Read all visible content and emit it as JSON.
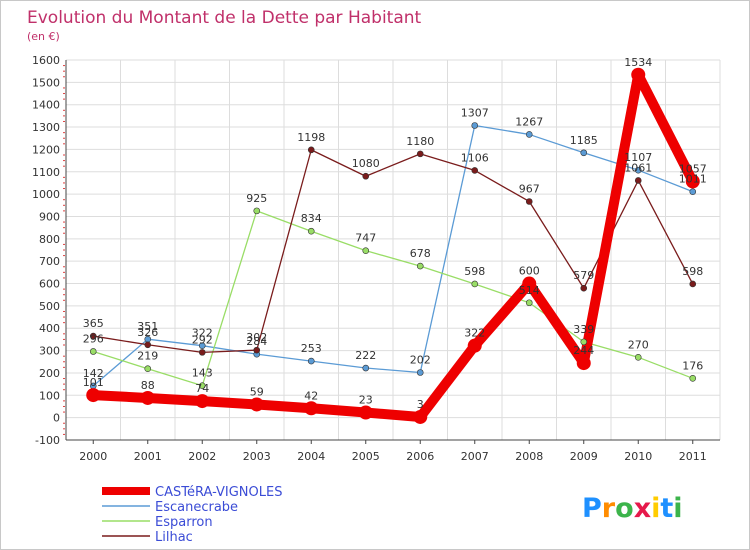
{
  "chart_data": {
    "type": "line",
    "title": "Evolution du Montant de la Dette par Habitant",
    "subtitle": "(en €)",
    "xlabel": "",
    "ylabel": "",
    "x": [
      "2000",
      "2001",
      "2002",
      "2003",
      "2004",
      "2005",
      "2006",
      "2007",
      "2008",
      "2009",
      "2010",
      "2011"
    ],
    "ylim": [
      -100,
      1600
    ],
    "yticks": [
      "-100",
      "0",
      "100",
      "200",
      "300",
      "400",
      "500",
      "600",
      "700",
      "800",
      "900",
      "1000",
      "1100",
      "1200",
      "1300",
      "1400",
      "1500",
      "1600"
    ],
    "grid": true,
    "legend_position": "bottom-left",
    "series": [
      {
        "name": "CASTéRA-VIGNOLES",
        "color": "#ee0000",
        "values": [
          101,
          88,
          74,
          59,
          42,
          23,
          3,
          322,
          600,
          244,
          1534,
          1057
        ],
        "labels": [
          "101",
          "88",
          "74",
          "59",
          "42",
          "23",
          "3",
          "322",
          "600",
          "244",
          "1534",
          "1057"
        ]
      },
      {
        "name": "Escanecrabe",
        "color": "#5b9bd5",
        "values": [
          142,
          351,
          322,
          284,
          253,
          222,
          202,
          1307,
          1267,
          1185,
          1107,
          1011
        ],
        "labels": [
          "142",
          "351",
          "322",
          "284",
          "253",
          "222",
          "202",
          "1307",
          "1267",
          "1185",
          "1107",
          "1011"
        ]
      },
      {
        "name": "Esparron",
        "color": "#99dd66",
        "values": [
          296,
          219,
          143,
          925,
          834,
          747,
          678,
          598,
          514,
          339,
          270,
          176
        ],
        "labels": [
          "296",
          "219",
          "143",
          "925",
          "834",
          "747",
          "678",
          "598",
          "514",
          "339",
          "270",
          "176"
        ]
      },
      {
        "name": "Lilhac",
        "color": "#7a1c1c",
        "values": [
          365,
          326,
          292,
          302,
          1198,
          1080,
          1180,
          1106,
          967,
          579,
          1061,
          598
        ],
        "labels": [
          "365",
          "326",
          "292",
          "302",
          "1198",
          "1080",
          "1180",
          "1106",
          "967",
          "579",
          "1061",
          "598"
        ]
      }
    ]
  },
  "logo": {
    "text": "Proxiti",
    "letters": [
      "P",
      "r",
      "o",
      "x",
      "i",
      "t",
      "i"
    ],
    "colors": [
      "#1e90ff",
      "#ff8c00",
      "#3cb44b",
      "#e6194b",
      "#ffcc00",
      "#1e90ff",
      "#3cb44b"
    ]
  }
}
